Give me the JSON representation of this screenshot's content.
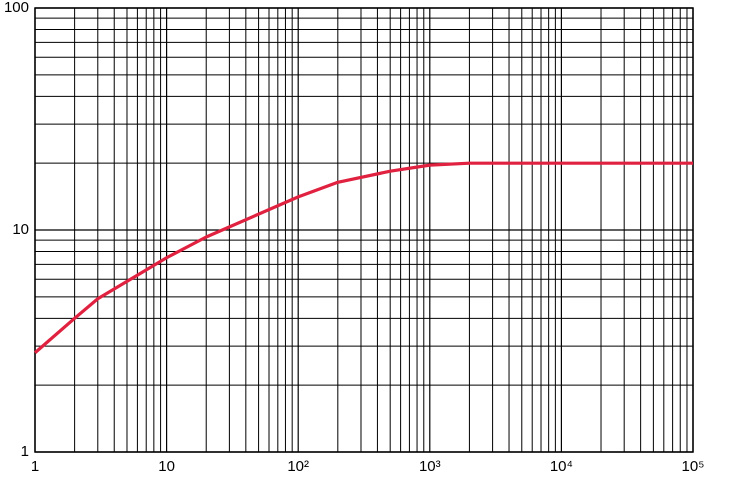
{
  "chart_data": {
    "type": "line",
    "x_log": true,
    "y_log": true,
    "grid": true,
    "minor_grid": true,
    "xlim": [
      1,
      100000
    ],
    "ylim": [
      1,
      100
    ],
    "xticks": [
      1,
      10,
      {
        "value": 100,
        "label": "10²"
      },
      {
        "value": 1000,
        "label": "10³"
      },
      {
        "value": 10000,
        "label": "10⁴"
      },
      {
        "value": 100000,
        "label": "10⁵"
      }
    ],
    "yticks": [
      1,
      10,
      100
    ],
    "series": [
      {
        "color": "#e0213f",
        "x": [
          1,
          2,
          3,
          10,
          20,
          100,
          200,
          500,
          1000,
          2000,
          100000
        ],
        "values": [
          2.8,
          4.0,
          4.9,
          7.5,
          9.3,
          14.1,
          16.4,
          18.4,
          19.6,
          20,
          20
        ]
      }
    ]
  }
}
